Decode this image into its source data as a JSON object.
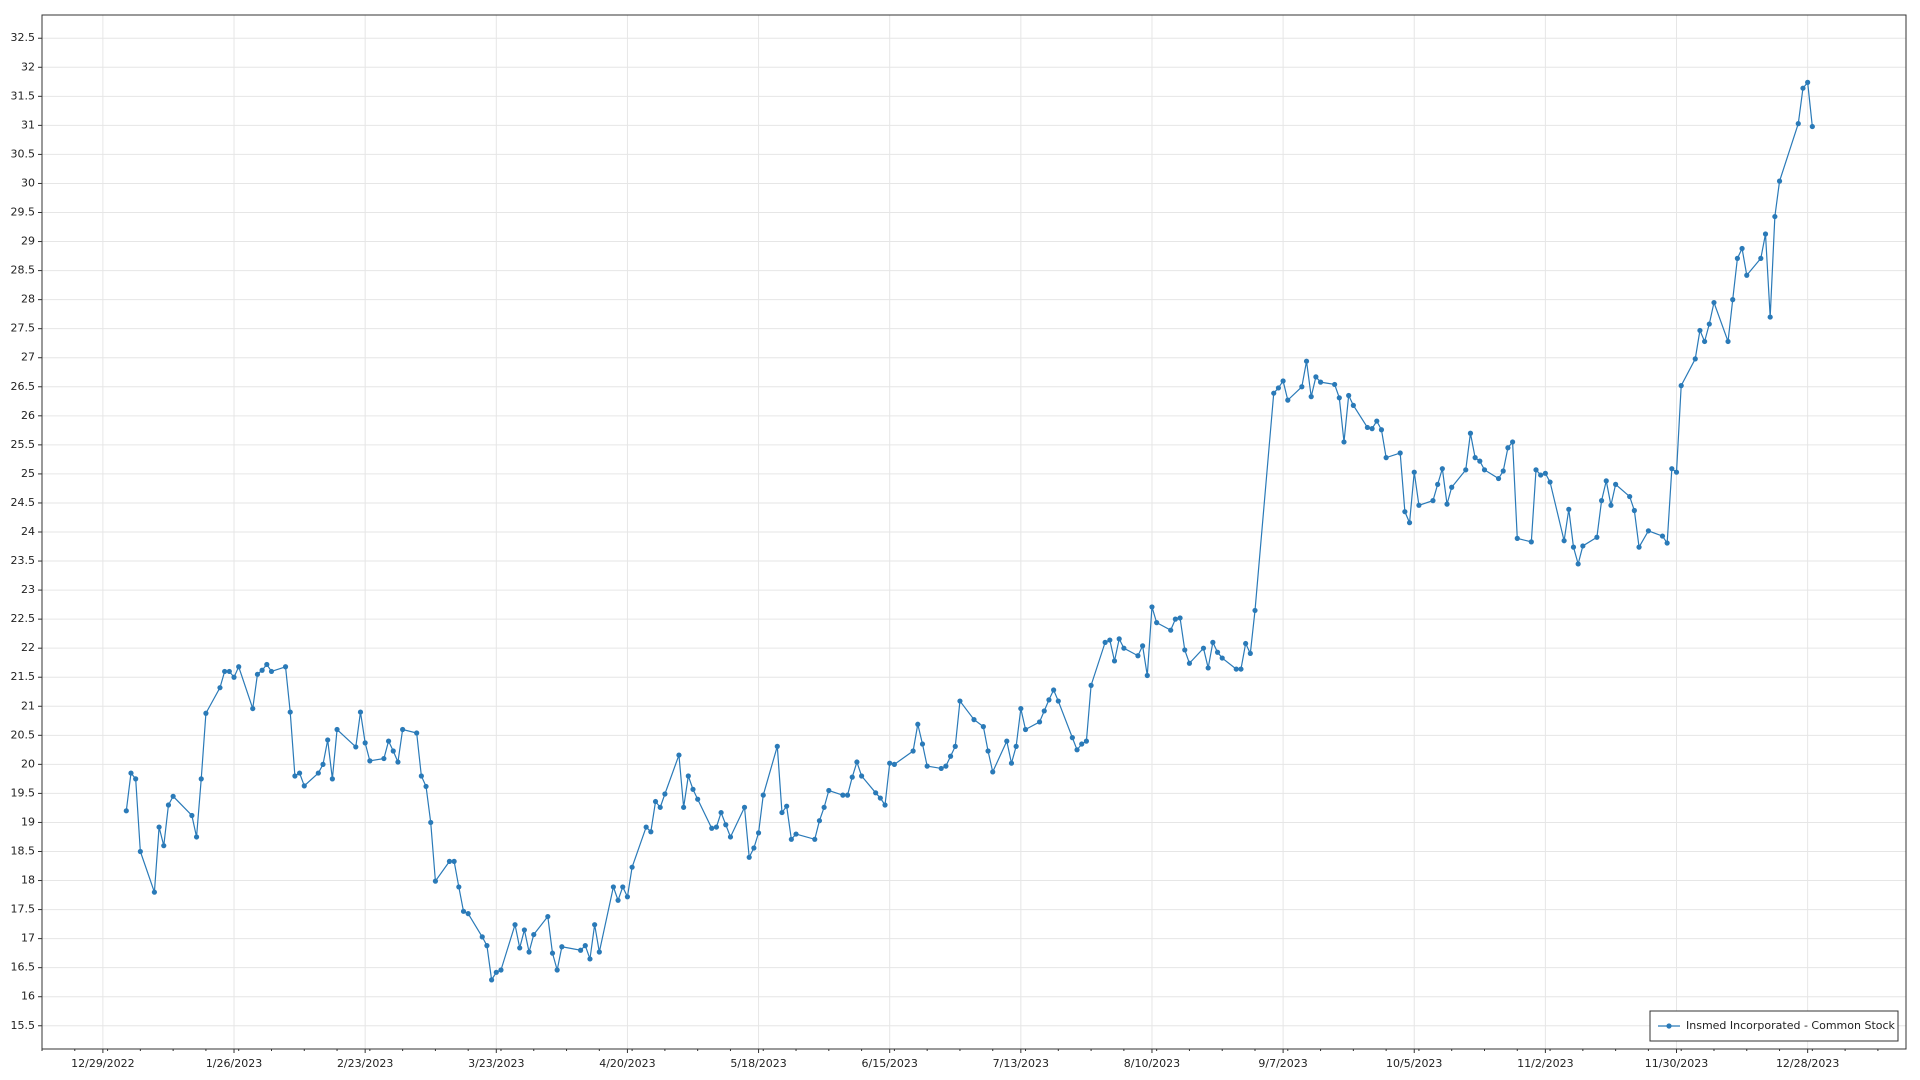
{
  "chart_data": {
    "type": "line",
    "legend_position": "lower right",
    "grid": true,
    "xlim": [
      "12/16/2022",
      "1/18/2024"
    ],
    "xticks": [
      "12/29/2022",
      "1/26/2023",
      "2/23/2023",
      "3/23/2023",
      "4/20/2023",
      "5/18/2023",
      "6/15/2023",
      "7/13/2023",
      "8/10/2023",
      "9/7/2023",
      "10/5/2023",
      "11/2/2023",
      "11/30/2023",
      "12/28/2023"
    ],
    "ylim": [
      15.1,
      32.9
    ],
    "yticks": [
      15.5,
      16,
      16.5,
      17,
      17.5,
      18,
      18.5,
      19,
      19.5,
      20,
      20.5,
      21,
      21.5,
      22,
      22.5,
      23,
      23.5,
      24,
      24.5,
      25,
      25.5,
      26,
      26.5,
      27,
      27.5,
      28,
      28.5,
      29,
      29.5,
      30,
      30.5,
      31,
      31.5,
      32,
      32.5
    ],
    "x": [
      "1/3/2023",
      "1/4/2023",
      "1/5/2023",
      "1/6/2023",
      "1/9/2023",
      "1/10/2023",
      "1/11/2023",
      "1/12/2023",
      "1/13/2023",
      "1/17/2023",
      "1/18/2023",
      "1/19/2023",
      "1/20/2023",
      "1/23/2023",
      "1/24/2023",
      "1/25/2023",
      "1/26/2023",
      "1/27/2023",
      "1/30/2023",
      "1/31/2023",
      "2/1/2023",
      "2/2/2023",
      "2/3/2023",
      "2/6/2023",
      "2/7/2023",
      "2/8/2023",
      "2/9/2023",
      "2/10/2023",
      "2/13/2023",
      "2/14/2023",
      "2/15/2023",
      "2/16/2023",
      "2/17/2023",
      "2/21/2023",
      "2/22/2023",
      "2/23/2023",
      "2/24/2023",
      "2/27/2023",
      "2/28/2023",
      "3/1/2023",
      "3/2/2023",
      "3/3/2023",
      "3/6/2023",
      "3/7/2023",
      "3/8/2023",
      "3/9/2023",
      "3/10/2023",
      "3/13/2023",
      "3/14/2023",
      "3/15/2023",
      "3/16/2023",
      "3/17/2023",
      "3/20/2023",
      "3/21/2023",
      "3/22/2023",
      "3/23/2023",
      "3/24/2023",
      "3/27/2023",
      "3/28/2023",
      "3/29/2023",
      "3/30/2023",
      "3/31/2023",
      "4/3/2023",
      "4/4/2023",
      "4/5/2023",
      "4/6/2023",
      "4/10/2023",
      "4/11/2023",
      "4/12/2023",
      "4/13/2023",
      "4/14/2023",
      "4/17/2023",
      "4/18/2023",
      "4/19/2023",
      "4/20/2023",
      "4/21/2023",
      "4/24/2023",
      "4/25/2023",
      "4/26/2023",
      "4/27/2023",
      "4/28/2023",
      "5/1/2023",
      "5/2/2023",
      "5/3/2023",
      "5/4/2023",
      "5/5/2023",
      "5/8/2023",
      "5/9/2023",
      "5/10/2023",
      "5/11/2023",
      "5/12/2023",
      "5/15/2023",
      "5/16/2023",
      "5/17/2023",
      "5/18/2023",
      "5/19/2023",
      "5/22/2023",
      "5/23/2023",
      "5/24/2023",
      "5/25/2023",
      "5/26/2023",
      "5/30/2023",
      "5/31/2023",
      "6/1/2023",
      "6/2/2023",
      "6/5/2023",
      "6/6/2023",
      "6/7/2023",
      "6/8/2023",
      "6/9/2023",
      "6/12/2023",
      "6/13/2023",
      "6/14/2023",
      "6/15/2023",
      "6/16/2023",
      "6/20/2023",
      "6/21/2023",
      "6/22/2023",
      "6/23/2023",
      "6/26/2023",
      "6/27/2023",
      "6/28/2023",
      "6/29/2023",
      "6/30/2023",
      "7/3/2023",
      "7/5/2023",
      "7/6/2023",
      "7/7/2023",
      "7/10/2023",
      "7/11/2023",
      "7/12/2023",
      "7/13/2023",
      "7/14/2023",
      "7/17/2023",
      "7/18/2023",
      "7/19/2023",
      "7/20/2023",
      "7/21/2023",
      "7/24/2023",
      "7/25/2023",
      "7/26/2023",
      "7/27/2023",
      "7/28/2023",
      "7/31/2023",
      "8/1/2023",
      "8/2/2023",
      "8/3/2023",
      "8/4/2023",
      "8/7/2023",
      "8/8/2023",
      "8/9/2023",
      "8/10/2023",
      "8/11/2023",
      "8/14/2023",
      "8/15/2023",
      "8/16/2023",
      "8/17/2023",
      "8/18/2023",
      "8/21/2023",
      "8/22/2023",
      "8/23/2023",
      "8/24/2023",
      "8/25/2023",
      "8/28/2023",
      "8/29/2023",
      "8/30/2023",
      "8/31/2023",
      "9/1/2023",
      "9/5/2023",
      "9/6/2023",
      "9/7/2023",
      "9/8/2023",
      "9/11/2023",
      "9/12/2023",
      "9/13/2023",
      "9/14/2023",
      "9/15/2023",
      "9/18/2023",
      "9/19/2023",
      "9/20/2023",
      "9/21/2023",
      "9/22/2023",
      "9/25/2023",
      "9/26/2023",
      "9/27/2023",
      "9/28/2023",
      "9/29/2023",
      "10/2/2023",
      "10/3/2023",
      "10/4/2023",
      "10/5/2023",
      "10/6/2023",
      "10/9/2023",
      "10/10/2023",
      "10/11/2023",
      "10/12/2023",
      "10/13/2023",
      "10/16/2023",
      "10/17/2023",
      "10/18/2023",
      "10/19/2023",
      "10/20/2023",
      "10/23/2023",
      "10/24/2023",
      "10/25/2023",
      "10/26/2023",
      "10/27/2023",
      "10/30/2023",
      "10/31/2023",
      "11/1/2023",
      "11/2/2023",
      "11/3/2023",
      "11/6/2023",
      "11/7/2023",
      "11/8/2023",
      "11/9/2023",
      "11/10/2023",
      "11/13/2023",
      "11/14/2023",
      "11/15/2023",
      "11/16/2023",
      "11/17/2023",
      "11/20/2023",
      "11/21/2023",
      "11/22/2023",
      "11/24/2023",
      "11/27/2023",
      "11/28/2023",
      "11/29/2023",
      "11/30/2023",
      "12/1/2023",
      "12/4/2023",
      "12/5/2023",
      "12/6/2023",
      "12/7/2023",
      "12/8/2023",
      "12/11/2023",
      "12/12/2023",
      "12/13/2023",
      "12/14/2023",
      "12/15/2023",
      "12/18/2023",
      "12/19/2023",
      "12/20/2023",
      "12/21/2023",
      "12/22/2023",
      "12/26/2023",
      "12/27/2023",
      "12/28/2023",
      "12/29/2023"
    ],
    "series": [
      {
        "name": "Insmed Incorporated - Common Stock",
        "color": "#2a7ab8",
        "values": [
          19.2,
          19.85,
          19.75,
          18.5,
          17.8,
          18.92,
          18.6,
          19.3,
          19.45,
          19.12,
          18.75,
          19.75,
          20.88,
          21.32,
          21.6,
          21.6,
          21.5,
          21.68,
          20.96,
          21.55,
          21.62,
          21.72,
          21.6,
          21.68,
          20.9,
          19.8,
          19.85,
          19.63,
          19.85,
          20.0,
          20.42,
          19.75,
          20.6,
          20.3,
          20.9,
          20.37,
          20.06,
          20.1,
          20.4,
          20.23,
          20.04,
          20.6,
          20.54,
          19.8,
          19.62,
          19.0,
          17.99,
          18.33,
          18.33,
          17.89,
          17.47,
          17.43,
          17.03,
          16.88,
          16.29,
          16.42,
          16.46,
          17.24,
          16.84,
          17.15,
          16.77,
          17.07,
          17.38,
          16.75,
          16.46,
          16.86,
          16.8,
          16.88,
          16.65,
          17.24,
          16.77,
          17.89,
          17.66,
          17.89,
          17.72,
          18.23,
          18.92,
          18.84,
          19.36,
          19.26,
          19.49,
          20.16,
          19.26,
          19.8,
          19.57,
          19.4,
          18.9,
          18.92,
          19.17,
          18.96,
          18.75,
          19.26,
          18.4,
          18.56,
          18.82,
          19.47,
          20.31,
          19.17,
          19.28,
          18.71,
          18.8,
          18.71,
          19.03,
          19.26,
          19.55,
          19.47,
          19.47,
          19.78,
          20.04,
          19.8,
          19.51,
          19.42,
          19.3,
          20.02,
          20.0,
          20.23,
          20.69,
          20.35,
          19.97,
          19.93,
          19.97,
          20.14,
          20.31,
          21.09,
          20.77,
          20.65,
          20.23,
          19.87,
          20.4,
          20.02,
          20.31,
          20.96,
          20.6,
          20.73,
          20.92,
          21.11,
          21.28,
          21.09,
          20.46,
          20.25,
          20.35,
          20.4,
          21.36,
          22.1,
          22.14,
          21.78,
          22.16,
          22.0,
          21.87,
          22.04,
          21.53,
          22.71,
          22.44,
          22.31,
          22.5,
          22.52,
          21.97,
          21.74,
          22.0,
          21.66,
          22.1,
          21.93,
          21.83,
          21.64,
          21.64,
          22.08,
          21.91,
          22.65,
          26.39,
          26.48,
          26.6,
          26.27,
          26.5,
          26.94,
          26.33,
          26.67,
          26.58,
          26.54,
          26.31,
          25.55,
          26.35,
          26.18,
          25.8,
          25.78,
          25.91,
          25.76,
          25.28,
          25.36,
          24.35,
          24.16,
          25.03,
          24.46,
          24.54,
          24.82,
          25.09,
          24.48,
          24.77,
          25.07,
          25.7,
          25.28,
          25.22,
          25.07,
          24.92,
          25.05,
          25.45,
          25.55,
          23.89,
          23.83,
          25.07,
          24.98,
          25.01,
          24.86,
          23.85,
          24.39,
          23.74,
          23.45,
          23.76,
          23.91,
          24.54,
          24.88,
          24.46,
          24.82,
          24.61,
          24.37,
          23.74,
          24.02,
          23.93,
          23.81,
          25.09,
          25.03,
          26.52,
          26.98,
          27.47,
          27.28,
          27.58,
          27.95,
          27.28,
          28.0,
          28.71,
          28.88,
          28.42,
          28.71,
          29.13,
          27.7,
          29.43,
          30.04,
          31.03,
          31.64,
          31.74,
          30.98
        ]
      }
    ]
  }
}
